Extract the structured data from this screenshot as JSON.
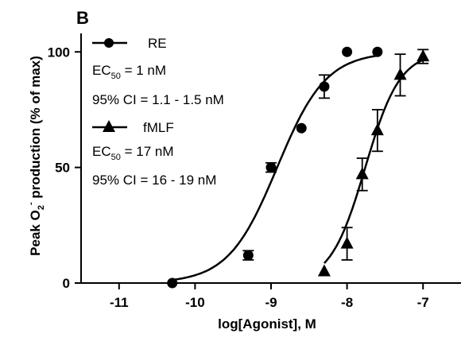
{
  "chart_data": {
    "type": "scatter",
    "panel_label": "B",
    "xlabel": "log[Agonist], M",
    "ylabel_parts": {
      "pre": "Peak O",
      "sub": "2",
      "sup": "-",
      "post": " production  (% of max)"
    },
    "xlim": [
      -11.5,
      -6.5
    ],
    "ylim": [
      0,
      108
    ],
    "x_ticks": [
      -11,
      -10,
      -9,
      -8,
      -7
    ],
    "x_tick_labels": [
      "-11",
      "-10",
      "-9",
      "-8",
      "-7"
    ],
    "y_ticks": [
      0,
      50,
      100
    ],
    "y_tick_labels": [
      "0",
      "50",
      "100"
    ],
    "grid": false,
    "legend_position": "top-left",
    "series": [
      {
        "name": "RE",
        "marker": "circle",
        "points": [
          {
            "x": -10.3,
            "y": 0,
            "err": 0
          },
          {
            "x": -9.3,
            "y": 12,
            "err": 2
          },
          {
            "x": -9.0,
            "y": 50,
            "err": 2
          },
          {
            "x": -8.6,
            "y": 67,
            "err": 0
          },
          {
            "x": -8.3,
            "y": 85,
            "err": 5
          },
          {
            "x": -8.0,
            "y": 100,
            "err": 0
          },
          {
            "x": -7.6,
            "y": 100,
            "err": 0
          }
        ],
        "fit": {
          "type": "sigmoid",
          "ec50_log": -8.92,
          "hill": 1.35,
          "x_range": [
            -10.3,
            -7.6
          ]
        }
      },
      {
        "name": "fMLF",
        "marker": "triangle",
        "points": [
          {
            "x": -8.3,
            "y": 5,
            "err": 0
          },
          {
            "x": -8.0,
            "y": 17,
            "err": 7
          },
          {
            "x": -7.8,
            "y": 47,
            "err": 7
          },
          {
            "x": -7.6,
            "y": 66,
            "err": 9
          },
          {
            "x": -7.3,
            "y": 90,
            "err": 9
          },
          {
            "x": -7.0,
            "y": 98,
            "err": 3
          }
        ],
        "fit": {
          "type": "sigmoid",
          "ec50_log": -7.76,
          "hill": 1.9,
          "x_range": [
            -8.3,
            -7.0
          ]
        }
      }
    ],
    "legend_entries": [
      {
        "label": "RE",
        "marker": "circle"
      },
      {
        "label": "fMLF",
        "marker": "triangle"
      }
    ],
    "annotations": {
      "re_ec50": {
        "pre": "EC",
        "sub": "50",
        "post": " = 1 nM"
      },
      "re_ci": "95% CI = 1.1 - 1.5 nM",
      "fmlf_ec50": {
        "pre": "EC",
        "sub": "50",
        "post": " = 17 nM"
      },
      "fmlf_ci": "95% CI = 16 - 19 nM"
    },
    "colors": {
      "ink": "#000000",
      "background": "#ffffff"
    }
  }
}
